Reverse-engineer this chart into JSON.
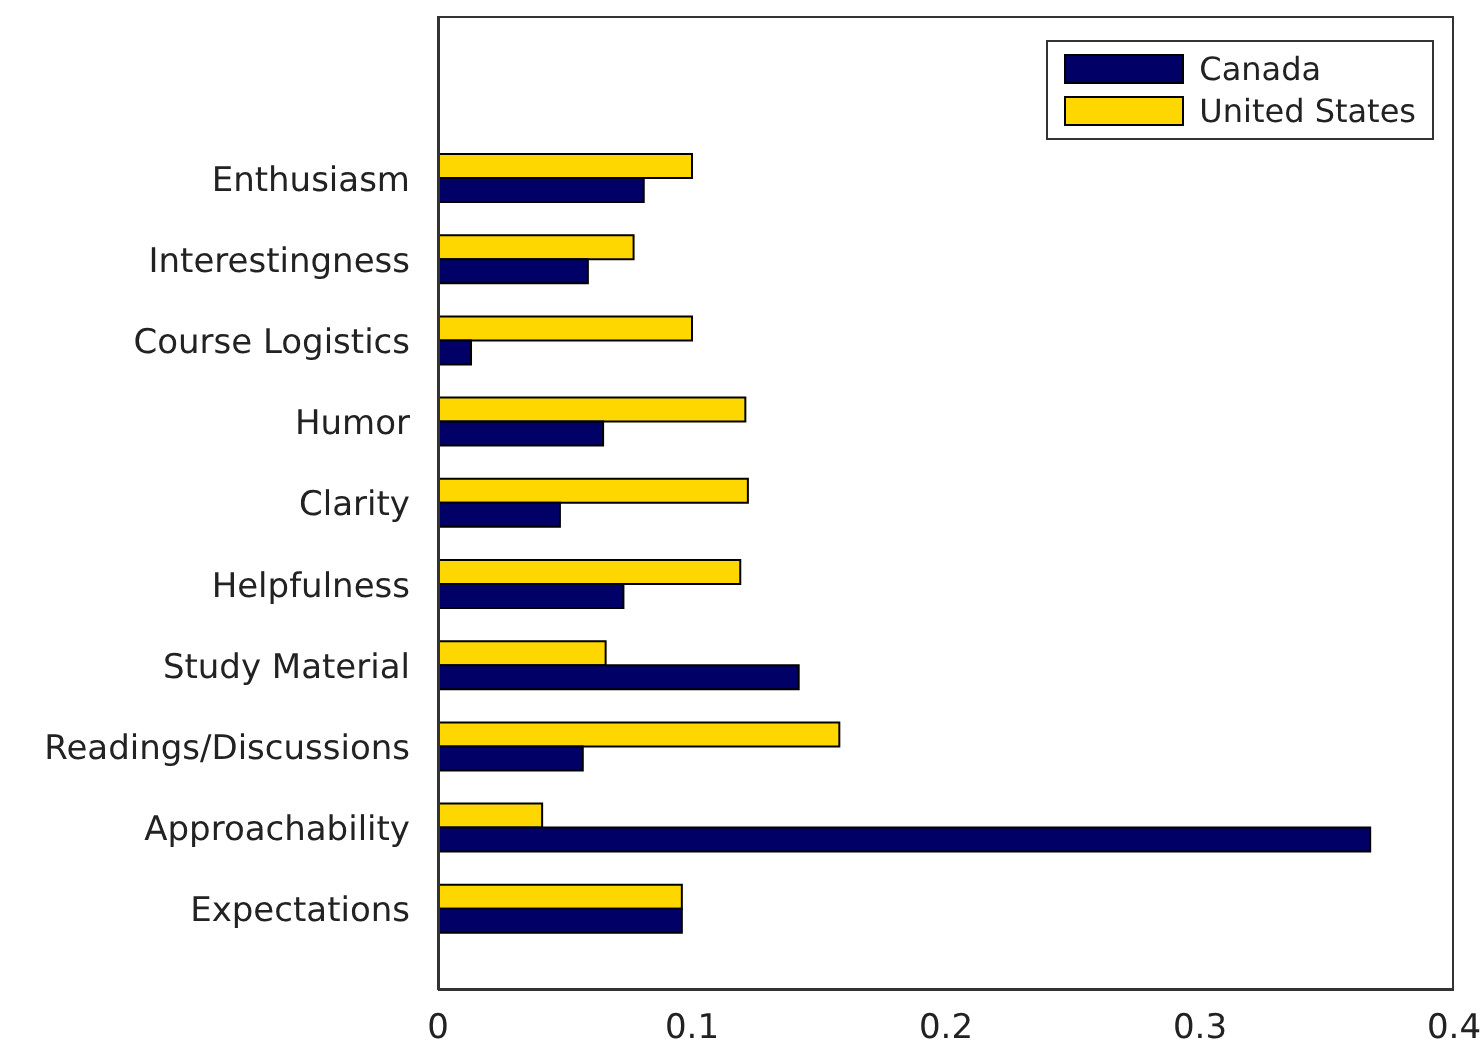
{
  "chart_data": {
    "type": "bar",
    "orientation": "horizontal",
    "categories": [
      "Enthusiasm",
      "Interestingness",
      "Course Logistics",
      "Humor",
      "Clarity",
      "Helpfulness",
      "Study Material",
      "Readings/Discussions",
      "Approachability",
      "Expectations"
    ],
    "series": [
      {
        "name": "Canada",
        "color": "#000066",
        "values": [
          0.081,
          0.059,
          0.013,
          0.065,
          0.048,
          0.073,
          0.142,
          0.057,
          0.367,
          0.096
        ]
      },
      {
        "name": "United States",
        "color": "#ffd700",
        "values": [
          0.1,
          0.077,
          0.1,
          0.121,
          0.122,
          0.119,
          0.066,
          0.158,
          0.041,
          0.096
        ]
      }
    ],
    "xlim": [
      0,
      0.4
    ],
    "xticks": [
      0,
      0.1,
      0.2,
      0.3,
      0.4
    ],
    "grid": false,
    "legend": "top right"
  }
}
